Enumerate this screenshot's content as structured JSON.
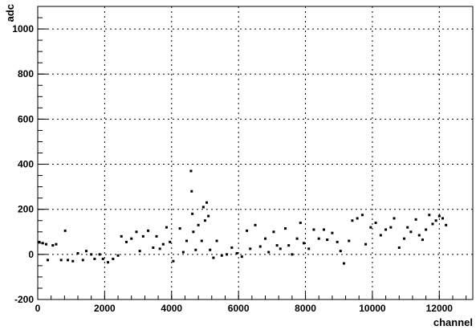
{
  "chart_data": {
    "type": "scatter",
    "title": "",
    "xlabel": "channel",
    "ylabel": "adc",
    "xlim": [
      0,
      13000
    ],
    "ylim": [
      -200,
      1100
    ],
    "x_ticks": [
      0,
      2000,
      4000,
      6000,
      8000,
      10000,
      12000
    ],
    "y_ticks": [
      -200,
      0,
      200,
      400,
      600,
      800,
      1000
    ],
    "x_tick_labels": [
      "0",
      "2000",
      "4000",
      "6000",
      "8000",
      "10000",
      "12000"
    ],
    "y_tick_labels": [
      "-200",
      "0",
      "200",
      "400",
      "600",
      "800",
      "1000"
    ],
    "grid": true,
    "legend": "none",
    "marker_color": "#000000",
    "series": [
      {
        "points": [
          {
            "x": 50,
            "y": 55
          },
          {
            "x": 150,
            "y": 50
          },
          {
            "x": 250,
            "y": 45
          },
          {
            "x": 300,
            "y": -25
          },
          {
            "x": 450,
            "y": 40
          },
          {
            "x": 550,
            "y": 45
          },
          {
            "x": 700,
            "y": -25
          },
          {
            "x": 820,
            "y": 105
          },
          {
            "x": 900,
            "y": -25
          },
          {
            "x": 1050,
            "y": -30
          },
          {
            "x": 1200,
            "y": 5
          },
          {
            "x": 1350,
            "y": -25
          },
          {
            "x": 1450,
            "y": 15
          },
          {
            "x": 1600,
            "y": 0
          },
          {
            "x": 1700,
            "y": -20
          },
          {
            "x": 1850,
            "y": 0
          },
          {
            "x": 1950,
            "y": -20
          },
          {
            "x": 2100,
            "y": -35
          },
          {
            "x": 2250,
            "y": -20
          },
          {
            "x": 2400,
            "y": -5
          },
          {
            "x": 2500,
            "y": 80
          },
          {
            "x": 2650,
            "y": 55
          },
          {
            "x": 2800,
            "y": 70
          },
          {
            "x": 2950,
            "y": 100
          },
          {
            "x": 3050,
            "y": 15
          },
          {
            "x": 3150,
            "y": 80
          },
          {
            "x": 3300,
            "y": 105
          },
          {
            "x": 3450,
            "y": 30
          },
          {
            "x": 3550,
            "y": 80
          },
          {
            "x": 3650,
            "y": 25
          },
          {
            "x": 3750,
            "y": 45
          },
          {
            "x": 3850,
            "y": 120
          },
          {
            "x": 3950,
            "y": 55
          },
          {
            "x": 4050,
            "y": -30
          },
          {
            "x": 4250,
            "y": 115
          },
          {
            "x": 4350,
            "y": 10
          },
          {
            "x": 4450,
            "y": 60
          },
          {
            "x": 4580,
            "y": 370
          },
          {
            "x": 4600,
            "y": 280
          },
          {
            "x": 4620,
            "y": 180
          },
          {
            "x": 4650,
            "y": 100
          },
          {
            "x": 4720,
            "y": 20
          },
          {
            "x": 4800,
            "y": 130
          },
          {
            "x": 4900,
            "y": 60
          },
          {
            "x": 4950,
            "y": 210
          },
          {
            "x": 5000,
            "y": 150
          },
          {
            "x": 5050,
            "y": 230
          },
          {
            "x": 5100,
            "y": 170
          },
          {
            "x": 5150,
            "y": 20
          },
          {
            "x": 5250,
            "y": -15
          },
          {
            "x": 5350,
            "y": 60
          },
          {
            "x": 5500,
            "y": -5
          },
          {
            "x": 5650,
            "y": 0
          },
          {
            "x": 5800,
            "y": 30
          },
          {
            "x": 5950,
            "y": 5
          },
          {
            "x": 6100,
            "y": -10
          },
          {
            "x": 6250,
            "y": 105
          },
          {
            "x": 6350,
            "y": 25
          },
          {
            "x": 6500,
            "y": 130
          },
          {
            "x": 6650,
            "y": 35
          },
          {
            "x": 6800,
            "y": 70
          },
          {
            "x": 6900,
            "y": 10
          },
          {
            "x": 7050,
            "y": 100
          },
          {
            "x": 7150,
            "y": 40
          },
          {
            "x": 7250,
            "y": 25
          },
          {
            "x": 7400,
            "y": 115
          },
          {
            "x": 7500,
            "y": 40
          },
          {
            "x": 7600,
            "y": 0
          },
          {
            "x": 7750,
            "y": 70
          },
          {
            "x": 7850,
            "y": 140
          },
          {
            "x": 7950,
            "y": 50
          },
          {
            "x": 8100,
            "y": 25
          },
          {
            "x": 8250,
            "y": 110
          },
          {
            "x": 8400,
            "y": 70
          },
          {
            "x": 8550,
            "y": 110
          },
          {
            "x": 8650,
            "y": 65
          },
          {
            "x": 8800,
            "y": 95
          },
          {
            "x": 8950,
            "y": 55
          },
          {
            "x": 9050,
            "y": 15
          },
          {
            "x": 9150,
            "y": -40
          },
          {
            "x": 9300,
            "y": 60
          },
          {
            "x": 9400,
            "y": 150
          },
          {
            "x": 9550,
            "y": 160
          },
          {
            "x": 9700,
            "y": 175
          },
          {
            "x": 9800,
            "y": 45
          },
          {
            "x": 9950,
            "y": 120
          },
          {
            "x": 10100,
            "y": 140
          },
          {
            "x": 10250,
            "y": 85
          },
          {
            "x": 10400,
            "y": 110
          },
          {
            "x": 10550,
            "y": 120
          },
          {
            "x": 10650,
            "y": 160
          },
          {
            "x": 10800,
            "y": 30
          },
          {
            "x": 10950,
            "y": 70
          },
          {
            "x": 11050,
            "y": 120
          },
          {
            "x": 11150,
            "y": 100
          },
          {
            "x": 11300,
            "y": 155
          },
          {
            "x": 11400,
            "y": 85
          },
          {
            "x": 11500,
            "y": 65
          },
          {
            "x": 11600,
            "y": 110
          },
          {
            "x": 11700,
            "y": 175
          },
          {
            "x": 11800,
            "y": 135
          },
          {
            "x": 11900,
            "y": 150
          },
          {
            "x": 12000,
            "y": 170
          },
          {
            "x": 12100,
            "y": 160
          },
          {
            "x": 12200,
            "y": 130
          }
        ]
      }
    ]
  }
}
